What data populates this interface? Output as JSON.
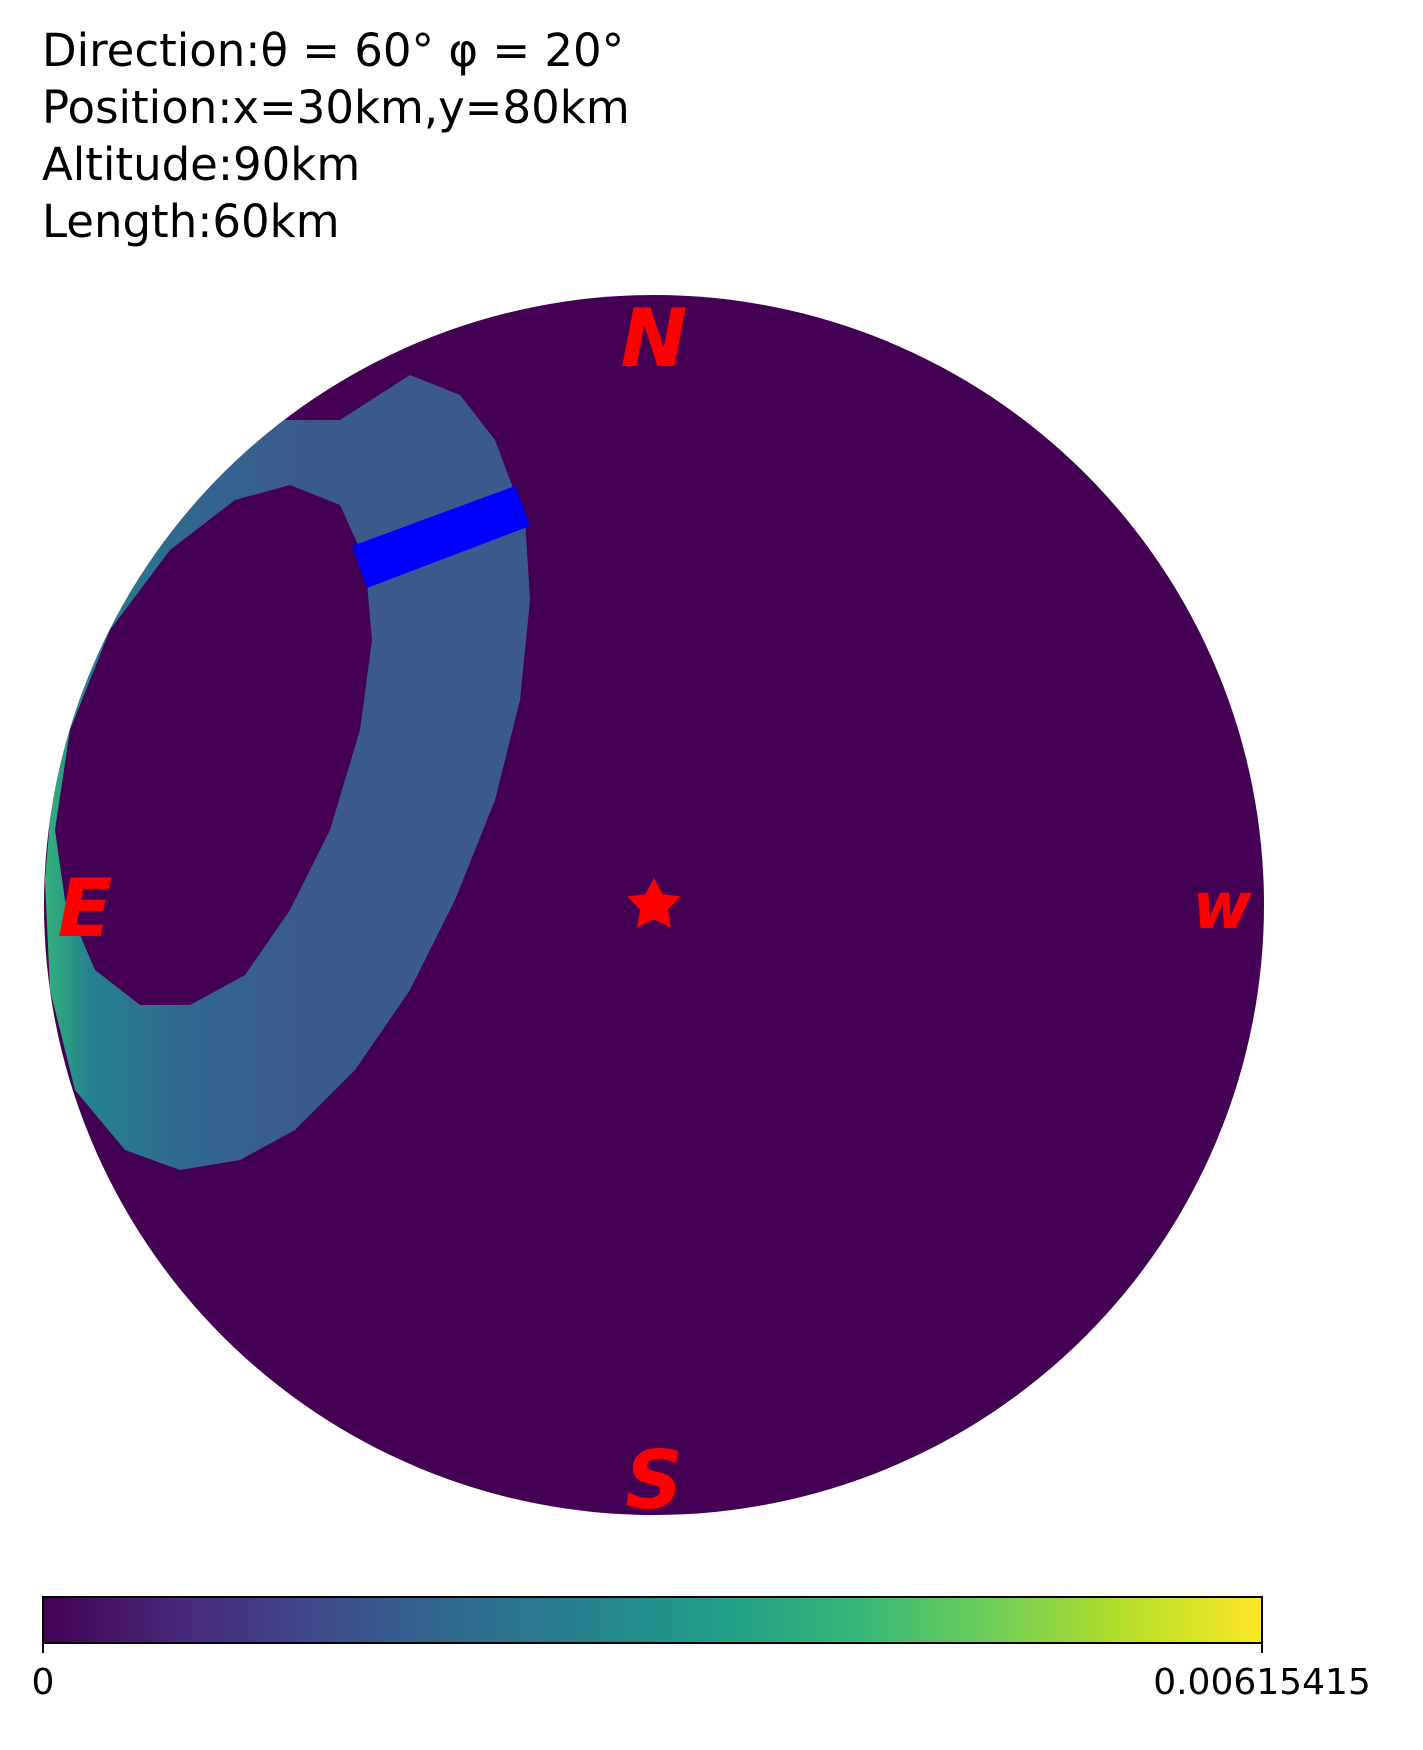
{
  "header": {
    "direction": "Direction:θ = 60° φ = 20°",
    "position": "Position:x=30km,y=80km",
    "altitude": "Altitude:90km",
    "length": "Length:60km"
  },
  "compass": {
    "north": "N",
    "south": "S",
    "east": "E",
    "west": "w"
  },
  "colorbar": {
    "min_label": "0",
    "max_label": "0.00615415",
    "colormap": "viridis",
    "stops": [
      "#440154",
      "#482878",
      "#3e4989",
      "#31688e",
      "#26828e",
      "#1f9e89",
      "#35b779",
      "#6ece58",
      "#b5de2b",
      "#fde725"
    ]
  },
  "chart_data": {
    "type": "heatmap",
    "title": "",
    "projection": "all-sky disk",
    "value_range": [
      0,
      0.00615415
    ],
    "background_value": 0,
    "colors": {
      "background": "#440154",
      "ring": "#3a5a8c",
      "ring_edge": "#2fb47c",
      "bar": "#0000ff",
      "labels": "#ff0000"
    },
    "features": [
      {
        "name": "illuminated ring",
        "location": "north-east",
        "approx_value": 0.0025,
        "edge_value": 0.004
      },
      {
        "name": "observer",
        "marker": "star",
        "location": "zenith"
      },
      {
        "name": "path segment",
        "color": "#0000ff",
        "location": "inside ring, north-east"
      }
    ]
  }
}
